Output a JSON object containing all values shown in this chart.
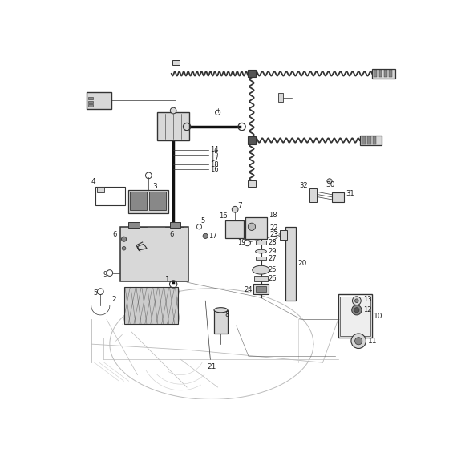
{
  "bg_color": "#ffffff",
  "line_color": "#333333",
  "label_color": "#222222",
  "gray_dark": "#555555",
  "gray_med": "#888888",
  "gray_light": "#bbbbbb",
  "gray_fill": "#d8d8d8",
  "black": "#111111"
}
